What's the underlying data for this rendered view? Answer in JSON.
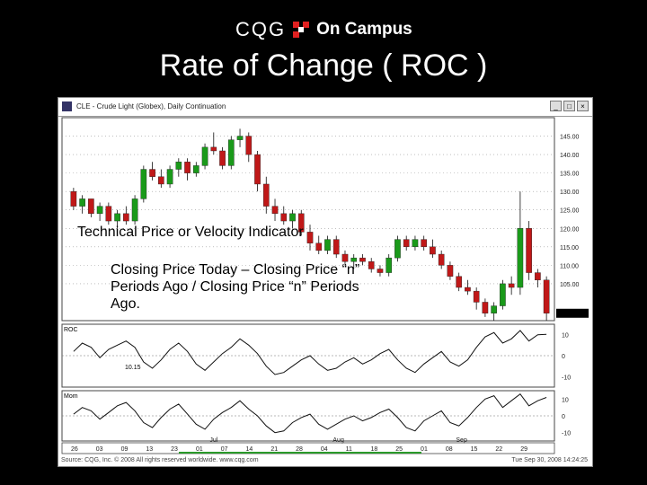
{
  "logo": {
    "brand": "CQG",
    "suffix": "On Campus",
    "mark_color": "#e02020"
  },
  "slide_title": "Rate of Change ( ROC )",
  "window": {
    "title": "CLE - Crude Light (Globex), Daily Continuation",
    "minimize_label": "_",
    "maximize_label": "□",
    "close_label": "×"
  },
  "overlay": {
    "line1": "Technical Price or Velocity Indicator",
    "line2": "Closing Price Today – Closing Price “n” Periods Ago / Closing Price “n” Periods Ago."
  },
  "panels": {
    "roc_label": "ROC",
    "roc_value": "10.15",
    "mom_label": "Mom"
  },
  "axis": {
    "price_ticks": [
      "145.00",
      "140.00",
      "135.00",
      "130.00",
      "125.00",
      "120.00",
      "115.00",
      "110.00",
      "105.00"
    ],
    "roc_ticks": [
      "10",
      "0",
      "-10"
    ],
    "mom_ticks": [
      "10",
      "0",
      "-10"
    ],
    "months": [
      "Jul",
      "Aug",
      "Sep"
    ],
    "days": [
      "26",
      "03",
      "09",
      "13",
      "23",
      "01",
      "07",
      "14",
      "21",
      "28",
      "04",
      "11",
      "18",
      "25",
      "01",
      "08",
      "15",
      "22",
      "29"
    ]
  },
  "footer": {
    "left": "Source: CQG, Inc. © 2008 All rights reserved worldwide. www.cqg.com",
    "right": "Tue Sep 30, 2008 14:24:25"
  },
  "chart_data": {
    "type": "candlestick",
    "colors": {
      "up": "#1a9a1a",
      "down": "#c01818"
    },
    "candles": [
      [
        130,
        131,
        125,
        126
      ],
      [
        126,
        129,
        124,
        128
      ],
      [
        128,
        128,
        123,
        124
      ],
      [
        124,
        127,
        122,
        126
      ],
      [
        126,
        127,
        121,
        122
      ],
      [
        122,
        125,
        120,
        124
      ],
      [
        124,
        126,
        121,
        122
      ],
      [
        122,
        129,
        121,
        128
      ],
      [
        128,
        137,
        127,
        136
      ],
      [
        136,
        138,
        133,
        134
      ],
      [
        134,
        136,
        131,
        132
      ],
      [
        132,
        137,
        131,
        136
      ],
      [
        136,
        139,
        134,
        138
      ],
      [
        138,
        139,
        133,
        135
      ],
      [
        135,
        138,
        134,
        137
      ],
      [
        137,
        143,
        136,
        142
      ],
      [
        142,
        146,
        140,
        141
      ],
      [
        141,
        142,
        136,
        137
      ],
      [
        137,
        145,
        136,
        144
      ],
      [
        144,
        147,
        142,
        145
      ],
      [
        145,
        146,
        138,
        140
      ],
      [
        140,
        141,
        130,
        132
      ],
      [
        132,
        134,
        124,
        126
      ],
      [
        126,
        128,
        122,
        124
      ],
      [
        124,
        126,
        121,
        122
      ],
      [
        122,
        125,
        120,
        124
      ],
      [
        124,
        125,
        118,
        119
      ],
      [
        119,
        121,
        114,
        116
      ],
      [
        116,
        118,
        113,
        114
      ],
      [
        114,
        118,
        113,
        117
      ],
      [
        117,
        118,
        112,
        113
      ],
      [
        113,
        114,
        110,
        111
      ],
      [
        111,
        113,
        109,
        112
      ],
      [
        112,
        113,
        110,
        111
      ],
      [
        111,
        112,
        108,
        109
      ],
      [
        109,
        110,
        107,
        108
      ],
      [
        108,
        113,
        107,
        112
      ],
      [
        112,
        118,
        111,
        117
      ],
      [
        117,
        118,
        114,
        115
      ],
      [
        115,
        118,
        114,
        117
      ],
      [
        117,
        118,
        114,
        115
      ],
      [
        115,
        117,
        112,
        113
      ],
      [
        113,
        114,
        109,
        110
      ],
      [
        110,
        111,
        106,
        107
      ],
      [
        107,
        108,
        103,
        104
      ],
      [
        104,
        106,
        102,
        103
      ],
      [
        103,
        104,
        98,
        100
      ],
      [
        100,
        101,
        96,
        97
      ],
      [
        97,
        100,
        95,
        99
      ],
      [
        99,
        106,
        98,
        105
      ],
      [
        105,
        107,
        102,
        104
      ],
      [
        104,
        130,
        102,
        120
      ],
      [
        120,
        122,
        106,
        108
      ],
      [
        108,
        109,
        104,
        106
      ],
      [
        106,
        107,
        95,
        97
      ]
    ],
    "series": [
      {
        "name": "ROC",
        "values": [
          2,
          6,
          4,
          -1,
          3,
          5,
          7,
          4,
          -3,
          -6,
          -2,
          3,
          6,
          2,
          -4,
          -7,
          -3,
          1,
          4,
          8,
          5,
          1,
          -5,
          -9,
          -8,
          -5,
          -2,
          0,
          -4,
          -7,
          -6,
          -3,
          -1,
          -4,
          -2,
          1,
          3,
          -2,
          -6,
          -8,
          -4,
          -1,
          2,
          -3,
          -5,
          -2,
          4,
          9,
          11,
          6,
          8,
          12,
          7,
          10,
          10.15
        ]
      },
      {
        "name": "Mom",
        "values": [
          1,
          5,
          3,
          -2,
          2,
          6,
          8,
          3,
          -4,
          -7,
          -1,
          4,
          7,
          1,
          -5,
          -8,
          -2,
          2,
          5,
          9,
          4,
          0,
          -6,
          -10,
          -9,
          -4,
          -1,
          1,
          -5,
          -8,
          -5,
          -2,
          0,
          -3,
          -1,
          2,
          4,
          -1,
          -7,
          -9,
          -3,
          0,
          3,
          -4,
          -6,
          -1,
          5,
          10,
          12,
          5,
          9,
          13,
          6,
          9,
          11
        ]
      }
    ],
    "ylim_price": [
      95,
      150
    ],
    "ylim_roc": [
      -15,
      15
    ],
    "ylim_mom": [
      -15,
      15
    ]
  }
}
